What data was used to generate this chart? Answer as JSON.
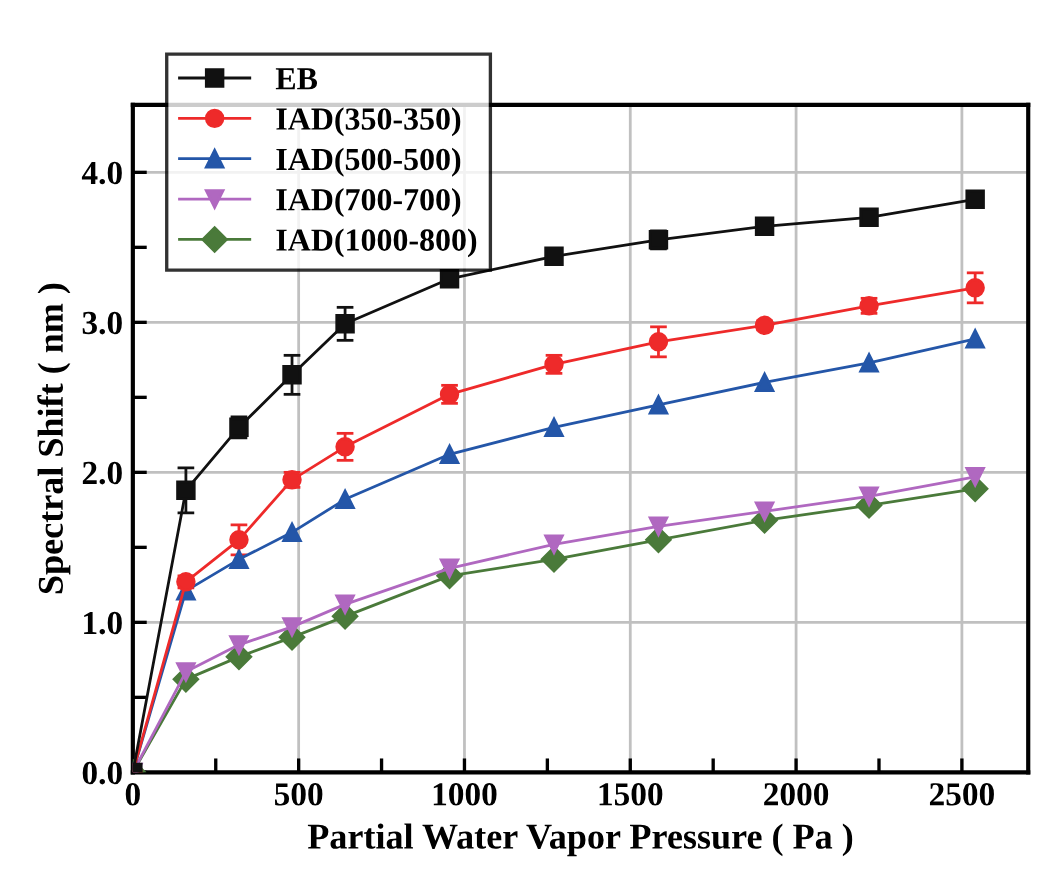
{
  "chart_data": {
    "type": "line",
    "xlabel": "Partial Water Vapor Pressure ( Pa )",
    "ylabel": "Spectral Shift ( nm )",
    "x": [
      0,
      160,
      320,
      480,
      640,
      955,
      1270,
      1585,
      1905,
      2220,
      2540
    ],
    "series": [
      {
        "name": "EB",
        "color": "#111111",
        "marker": "square",
        "values": [
          0,
          1.88,
          2.3,
          2.65,
          2.99,
          3.29,
          3.44,
          3.55,
          3.64,
          3.7,
          3.82
        ],
        "errors": [
          null,
          0.15,
          0.07,
          0.13,
          0.11,
          0.03,
          0.03,
          0.06,
          0.03,
          0.03,
          0.03
        ]
      },
      {
        "name": "IAD(350-350)",
        "color": "#ee2a2a",
        "marker": "circle",
        "values": [
          0,
          1.27,
          1.55,
          1.95,
          2.17,
          2.52,
          2.72,
          2.87,
          2.98,
          3.11,
          3.23
        ],
        "errors": [
          null,
          0.04,
          0.1,
          0.05,
          0.09,
          0.06,
          0.06,
          0.1,
          0.03,
          0.05,
          0.1
        ]
      },
      {
        "name": "IAD(500-500)",
        "color": "#2456a8",
        "marker": "triangle",
        "values": [
          0,
          1.21,
          1.42,
          1.6,
          1.82,
          2.12,
          2.3,
          2.45,
          2.6,
          2.73,
          2.89
        ]
      },
      {
        "name": "IAD(700-700)",
        "color": "#b068c0",
        "marker": "triangle_down",
        "values": [
          0,
          0.67,
          0.85,
          0.97,
          1.12,
          1.36,
          1.52,
          1.64,
          1.74,
          1.84,
          1.97
        ]
      },
      {
        "name": "IAD(1000-800)",
        "color": "#4a7a3a",
        "marker": "diamond",
        "values": [
          0,
          0.62,
          0.77,
          0.9,
          1.04,
          1.31,
          1.42,
          1.55,
          1.68,
          1.78,
          1.89
        ]
      }
    ],
    "xlim": [
      0,
      2700
    ],
    "ylim": [
      0,
      4.45
    ],
    "xticks": [
      0,
      {
        "value": 250,
        "label": null
      },
      500,
      {
        "value": 750,
        "label": null
      },
      1000,
      {
        "value": 1250,
        "label": null
      },
      1500,
      {
        "value": 1750,
        "label": null
      },
      2000,
      {
        "value": 2250,
        "label": null
      },
      2500
    ],
    "yticks": [
      {
        "value": 0,
        "label": "0.0"
      },
      {
        "value": 0.5,
        "label": null
      },
      {
        "value": 1,
        "label": "1.0"
      },
      {
        "value": 1.5,
        "label": null
      },
      {
        "value": 2,
        "label": "2.0"
      },
      {
        "value": 2.5,
        "label": null
      },
      {
        "value": 3,
        "label": "3.0"
      },
      {
        "value": 3.5,
        "label": null
      },
      {
        "value": 4,
        "label": "4.0"
      }
    ],
    "grid": true,
    "legend": "top left",
    "line_style": "solid"
  }
}
